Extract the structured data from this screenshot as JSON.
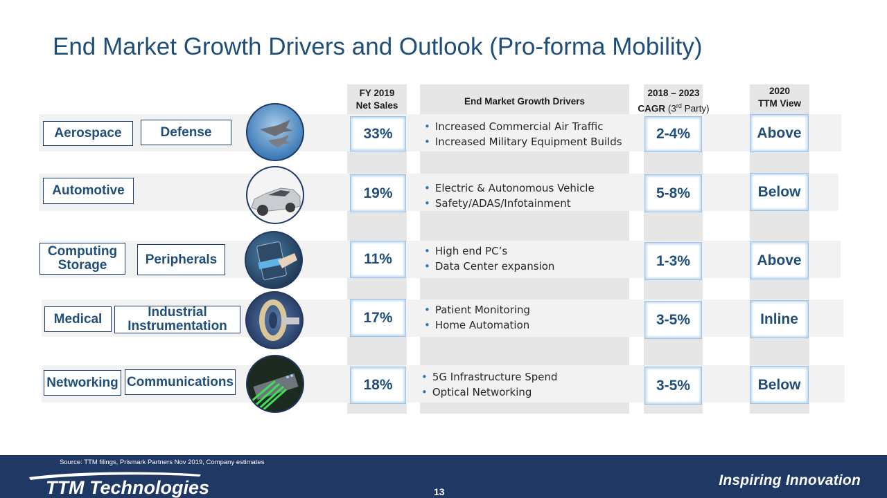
{
  "title": "End Market Growth Drivers and Outlook (Pro-forma Mobility)",
  "headers": {
    "net_sales_line1": "FY 2019",
    "net_sales_line2": "Net Sales",
    "drivers": "End Market Growth Drivers",
    "cagr_line1": "2018 – 2023",
    "cagr_bold": "CAGR",
    "cagr_paren_pre": "(3",
    "cagr_sup": "rd",
    "cagr_paren_post": " Party)",
    "ttm_line1": "2020",
    "ttm_line2": "TTM View"
  },
  "rows": [
    {
      "segments": [
        "Aerospace",
        "Defense"
      ],
      "net_sales": "33%",
      "drivers": [
        "Increased Commercial Air Traffic",
        "Increased Military Equipment Builds"
      ],
      "cagr": "2-4%",
      "ttm_view": "Above",
      "photo_icon": "fighter-jets-icon"
    },
    {
      "segments": [
        "Automotive"
      ],
      "net_sales": "19%",
      "drivers": [
        "Electric & Autonomous Vehicle",
        "Safety/ADAS/Infotainment"
      ],
      "cagr": "5-8%",
      "ttm_view": "Below",
      "photo_icon": "car-icon"
    },
    {
      "segments": [
        "Computing Storage",
        "Peripherals"
      ],
      "net_sales": "11%",
      "drivers": [
        "High end PC’s",
        "Data Center expansion"
      ],
      "cagr": "1-3%",
      "ttm_view": "Above",
      "photo_icon": "card-reader-icon"
    },
    {
      "segments": [
        "Medical",
        "Industrial Instrumentation"
      ],
      "net_sales": "17%",
      "drivers": [
        "Patient Monitoring",
        "Home Automation"
      ],
      "cagr": "3-5%",
      "ttm_view": "Inline",
      "photo_icon": "medical-scanner-icon"
    },
    {
      "segments": [
        "Networking",
        "Communications"
      ],
      "net_sales": "18%",
      "drivers": [
        "5G Infrastructure Spend",
        "Optical Networking"
      ],
      "cagr": "3-5%",
      "ttm_view": "Below",
      "photo_icon": "network-switch-icon"
    }
  ],
  "footer": {
    "source": "Source: TTM filings, Prismark Partners Nov 2019, Company estimates",
    "logo_text": "TTM Technologies",
    "tagline": "Inspiring Innovation",
    "page_number": "13"
  },
  "colors": {
    "title": "#1f4e79",
    "footer": "#1f3864",
    "column_bg": "#e6e6e6",
    "band": "#f2f2f2"
  }
}
